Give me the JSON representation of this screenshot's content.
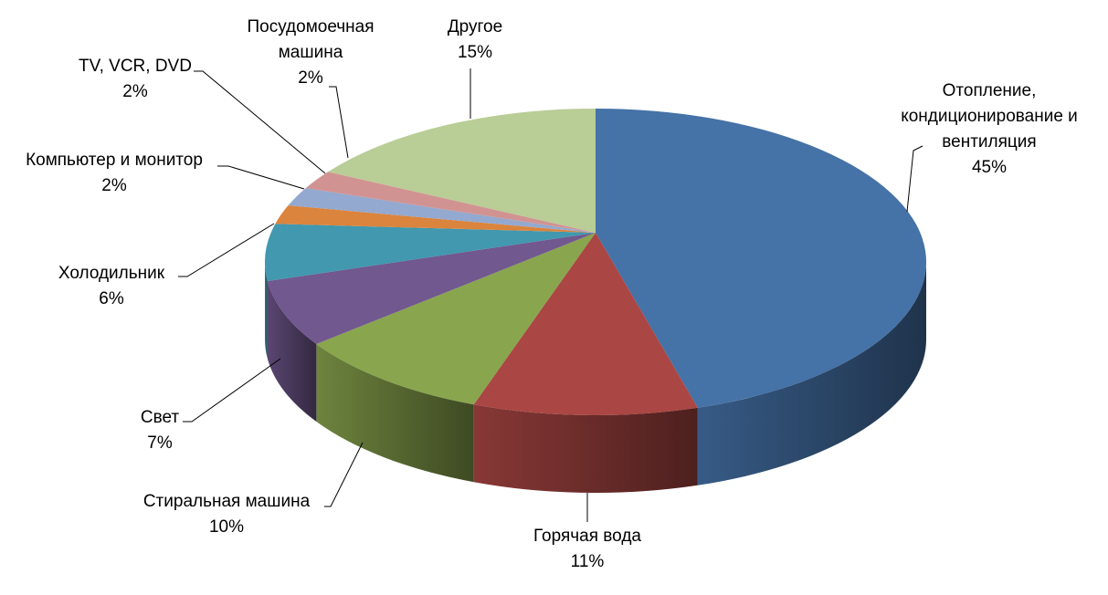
{
  "chart_data": {
    "type": "pie3d",
    "categories": [
      "Отопление,\nкондиционирование и\nвентиляция",
      "Горячая вода",
      "Стиральная машина",
      "Свет",
      "Холодильник",
      "Компьютер и монитор",
      "TV, VCR, DVD",
      "Посудомоечная\nмашина",
      "Другое"
    ],
    "values": [
      45,
      11,
      10,
      7,
      6,
      2,
      2,
      2,
      15
    ],
    "value_labels": [
      "45%",
      "11%",
      "10%",
      "7%",
      "6%",
      "2%",
      "2%",
      "2%",
      "15%"
    ],
    "colors": [
      "#4572a7",
      "#aa4643",
      "#89a54e",
      "#71588f",
      "#4198af",
      "#db843d",
      "#93a9cf",
      "#d19392",
      "#b9cd96"
    ]
  }
}
